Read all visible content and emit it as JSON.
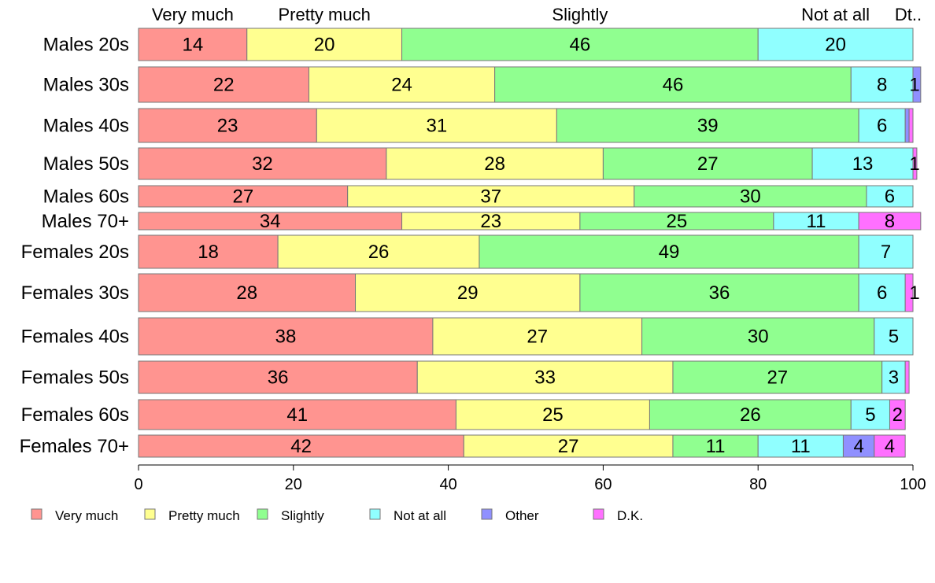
{
  "chart_data": {
    "type": "bar",
    "orientation": "horizontal",
    "stacked": true,
    "xlim": [
      0,
      100
    ],
    "x_ticks": [
      "0",
      "20",
      "40",
      "60",
      "80",
      "100"
    ],
    "top_labels": [
      "Very much",
      "Pretty much",
      "Slightly",
      "Not at all",
      "Dt.."
    ],
    "series_names": [
      "Very much",
      "Pretty much",
      "Slightly",
      "Not at all",
      "Other",
      "D.K."
    ],
    "colors": [
      "#ff9490",
      "#ffff90",
      "#90ff90",
      "#90ffff",
      "#9090ff",
      "#ff70ff"
    ],
    "legend_position": "bottom",
    "rows": [
      {
        "label": "Males 20s",
        "values": [
          14,
          20,
          46,
          20,
          0,
          0
        ],
        "labels": [
          "14",
          "20",
          "46",
          "20",
          "",
          ""
        ]
      },
      {
        "label": "Males 30s",
        "values": [
          22,
          24,
          46,
          8,
          1,
          0
        ],
        "labels": [
          "22",
          "24",
          "46",
          "8",
          "1",
          ""
        ]
      },
      {
        "label": "Males 40s",
        "values": [
          23,
          31,
          39,
          6,
          0.5,
          0.5
        ],
        "labels": [
          "23",
          "31",
          "39",
          "6",
          "",
          ""
        ]
      },
      {
        "label": "Males 50s",
        "values": [
          32,
          28,
          27,
          13,
          0,
          0.5
        ],
        "labels": [
          "32",
          "28",
          "27",
          "13",
          "",
          "1"
        ]
      },
      {
        "label": "Males 60s",
        "values": [
          27,
          37,
          30,
          6,
          0,
          0
        ],
        "labels": [
          "27",
          "37",
          "30",
          "6",
          "",
          ""
        ]
      },
      {
        "label": "Males 70+",
        "values": [
          34,
          23,
          25,
          11,
          0,
          8
        ],
        "labels": [
          "34",
          "23",
          "25",
          "11",
          "",
          "8"
        ]
      },
      {
        "label": "Females 20s",
        "values": [
          18,
          26,
          49,
          7,
          0,
          0
        ],
        "labels": [
          "18",
          "26",
          "49",
          "7",
          "",
          ""
        ]
      },
      {
        "label": "Females 30s",
        "values": [
          28,
          29,
          36,
          6,
          0,
          1
        ],
        "labels": [
          "28",
          "29",
          "36",
          "6",
          "",
          "1"
        ]
      },
      {
        "label": "Females 40s",
        "values": [
          38,
          27,
          30,
          5,
          0,
          0
        ],
        "labels": [
          "38",
          "27",
          "30",
          "5",
          "",
          ""
        ]
      },
      {
        "label": "Females 50s",
        "values": [
          36,
          33,
          27,
          3,
          0,
          0.5
        ],
        "labels": [
          "36",
          "33",
          "27",
          "3",
          "",
          ""
        ]
      },
      {
        "label": "Females 60s",
        "values": [
          41,
          25,
          26,
          5,
          0,
          2
        ],
        "labels": [
          "41",
          "25",
          "26",
          "5",
          "",
          "2"
        ]
      },
      {
        "label": "Females 70+",
        "values": [
          42,
          27,
          11,
          11,
          4,
          4
        ],
        "labels": [
          "42",
          "27",
          "11",
          "11",
          "4",
          "4"
        ]
      }
    ]
  }
}
